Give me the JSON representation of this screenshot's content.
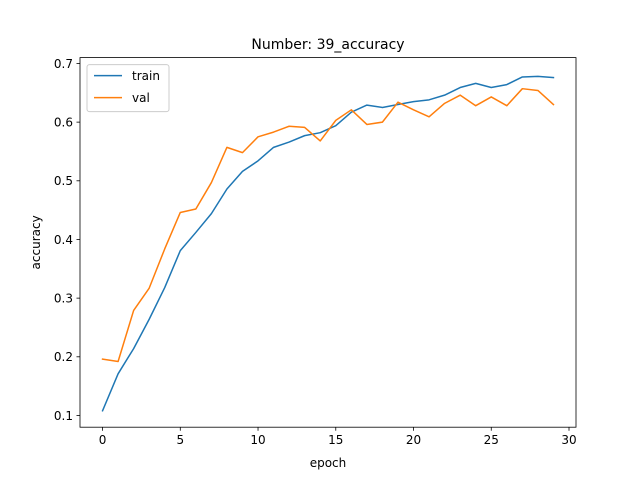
{
  "chart_data": {
    "type": "line",
    "title": "Number: 39_accuracy",
    "xlabel": "epoch",
    "ylabel": "accuracy",
    "xlim": [
      -1.45,
      30.45
    ],
    "ylim": [
      0.08,
      0.71
    ],
    "xticks": [
      0,
      5,
      10,
      15,
      20,
      25,
      30
    ],
    "yticks": [
      0.1,
      0.2,
      0.3,
      0.4,
      0.5,
      0.6,
      0.7
    ],
    "xtick_labels": [
      "0",
      "5",
      "10",
      "15",
      "20",
      "25",
      "30"
    ],
    "ytick_labels": [
      "0.1",
      "0.2",
      "0.3",
      "0.4",
      "0.5",
      "0.6",
      "0.7"
    ],
    "grid": false,
    "legend": "top-left",
    "x": [
      0,
      1,
      2,
      3,
      4,
      5,
      6,
      7,
      8,
      9,
      10,
      11,
      12,
      13,
      14,
      15,
      16,
      17,
      18,
      19,
      20,
      21,
      22,
      23,
      24,
      25,
      26,
      27,
      28,
      29
    ],
    "series": [
      {
        "name": "train",
        "color": "#1f77b4",
        "values": [
          0.108,
          0.171,
          0.214,
          0.264,
          0.318,
          0.381,
          0.412,
          0.444,
          0.486,
          0.516,
          0.534,
          0.557,
          0.566,
          0.577,
          0.582,
          0.594,
          0.617,
          0.629,
          0.625,
          0.63,
          0.635,
          0.638,
          0.646,
          0.659,
          0.666,
          0.659,
          0.664,
          0.677,
          0.678,
          0.676
        ]
      },
      {
        "name": "val",
        "color": "#ff7f0e",
        "values": [
          0.196,
          0.192,
          0.279,
          0.317,
          0.384,
          0.446,
          0.452,
          0.497,
          0.557,
          0.548,
          0.575,
          0.583,
          0.593,
          0.591,
          0.568,
          0.603,
          0.621,
          0.596,
          0.6,
          0.634,
          0.621,
          0.609,
          0.632,
          0.646,
          0.628,
          0.643,
          0.628,
          0.657,
          0.654,
          0.63
        ]
      }
    ]
  }
}
